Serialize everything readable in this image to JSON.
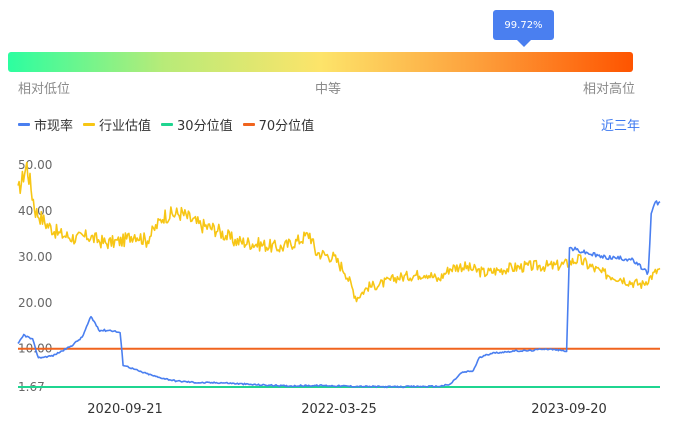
{
  "percentile_bar": {
    "marker_label": "99.72%",
    "low_label": "相对低位",
    "mid_label": "中等",
    "high_label": "相对高位",
    "marker_value": 0.9972
  },
  "range_selector": {
    "label": "近三年"
  },
  "chart_data": {
    "type": "line",
    "legend": [
      "市现率",
      "行业估值",
      "30分位值",
      "70分位值"
    ],
    "x_ticks": [
      "2020-09-21",
      "2022-03-25",
      "2023-09-20"
    ],
    "y_ticks": [
      "50.00",
      "40.00",
      "30.00",
      "20.00",
      "10.00",
      "1.67"
    ],
    "y_range": [
      1.67,
      50.0
    ],
    "colors": {
      "pcf": "#4a7ff0",
      "industry": "#f7c615",
      "p30": "#1fd590",
      "p70": "#f0641e"
    },
    "series": [
      {
        "name": "市现率",
        "points": [
          [
            0,
            11
          ],
          [
            0.01,
            13
          ],
          [
            0.025,
            12
          ],
          [
            0.035,
            8
          ],
          [
            0.06,
            8.5
          ],
          [
            0.09,
            10.5
          ],
          [
            0.11,
            12.5
          ],
          [
            0.125,
            17
          ],
          [
            0.14,
            14
          ],
          [
            0.16,
            14
          ],
          [
            0.175,
            13.5
          ],
          [
            0.18,
            6.5
          ],
          [
            0.21,
            5
          ],
          [
            0.24,
            3.8
          ],
          [
            0.27,
            3
          ],
          [
            0.31,
            2.6
          ],
          [
            0.35,
            2.6
          ],
          [
            0.4,
            2.2
          ],
          [
            0.46,
            1.9
          ],
          [
            0.52,
            2.0
          ],
          [
            0.58,
            1.8
          ],
          [
            0.64,
            1.7
          ],
          [
            0.7,
            1.8
          ],
          [
            0.72,
            1.8
          ],
          [
            0.74,
            2.2
          ],
          [
            0.76,
            4.8
          ],
          [
            0.78,
            5.2
          ],
          [
            0.79,
            8
          ],
          [
            0.81,
            9
          ],
          [
            0.85,
            9.5
          ],
          [
            0.88,
            9.6
          ],
          [
            0.9,
            10
          ],
          [
            0.92,
            9.8
          ],
          [
            0.94,
            9.5
          ],
          [
            0.945,
            32
          ],
          [
            0.97,
            31
          ],
          [
            1.0,
            30
          ],
          [
            1.05,
            29.5
          ],
          [
            1.08,
            26.5
          ],
          [
            1.085,
            39
          ],
          [
            1.09,
            41.5
          ],
          [
            1.1,
            42
          ]
        ]
      },
      {
        "name": "行业估值",
        "points": [
          [
            0,
            44
          ],
          [
            0.015,
            50
          ],
          [
            0.03,
            40
          ],
          [
            0.05,
            37
          ],
          [
            0.07,
            35
          ],
          [
            0.1,
            34
          ],
          [
            0.12,
            34.5
          ],
          [
            0.15,
            33
          ],
          [
            0.18,
            33.5
          ],
          [
            0.2,
            35
          ],
          [
            0.22,
            33.5
          ],
          [
            0.25,
            39
          ],
          [
            0.28,
            39.5
          ],
          [
            0.31,
            37
          ],
          [
            0.34,
            36
          ],
          [
            0.37,
            33.5
          ],
          [
            0.4,
            33
          ],
          [
            0.45,
            32
          ],
          [
            0.48,
            33.5
          ],
          [
            0.5,
            35
          ],
          [
            0.51,
            31
          ],
          [
            0.54,
            30
          ],
          [
            0.56,
            27
          ],
          [
            0.58,
            21
          ],
          [
            0.6,
            23.5
          ],
          [
            0.62,
            24
          ],
          [
            0.65,
            25.5
          ],
          [
            0.68,
            26
          ],
          [
            0.7,
            26.5
          ],
          [
            0.72,
            25
          ],
          [
            0.74,
            27.5
          ],
          [
            0.76,
            28
          ],
          [
            0.8,
            26.5
          ],
          [
            0.84,
            27.5
          ],
          [
            0.88,
            28
          ],
          [
            0.92,
            28
          ],
          [
            0.94,
            28.5
          ],
          [
            0.96,
            29.5
          ],
          [
            0.98,
            28
          ],
          [
            1.0,
            26.5
          ],
          [
            1.03,
            25.5
          ],
          [
            1.05,
            24.5
          ],
          [
            1.07,
            24
          ],
          [
            1.1,
            27.5
          ]
        ]
      },
      {
        "name": "30分位值",
        "constant": 1.67
      },
      {
        "name": "70分位值",
        "constant": 10.0
      }
    ]
  }
}
